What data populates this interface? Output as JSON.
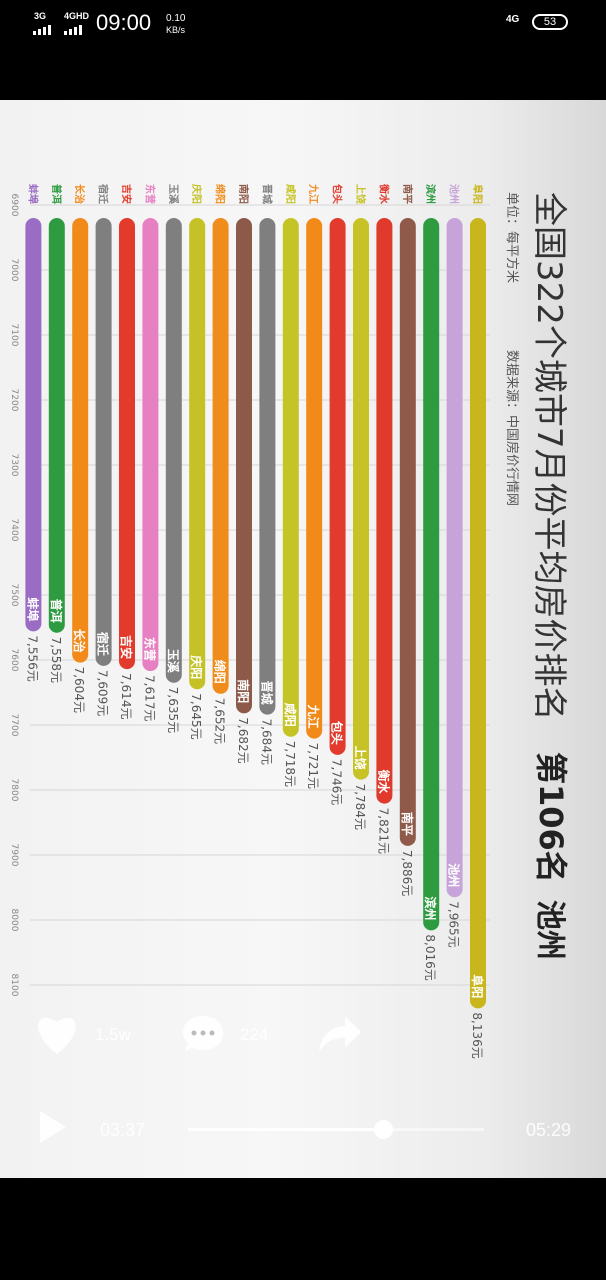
{
  "status_bar": {
    "net1": "3G",
    "net2": "4GHD",
    "time": "09:00",
    "speed_value": "0.10",
    "speed_unit": "KB/s",
    "right_net": "4G",
    "battery": "53"
  },
  "player": {
    "likes": "1.5w",
    "comments": "224",
    "current_time": "03:37",
    "duration": "05:29",
    "progress": 0.66,
    "icons": [
      "heart-icon",
      "comment-icon",
      "share-icon",
      "play-icon"
    ]
  },
  "chart_data": {
    "type": "bar",
    "orientation": "rotated-90deg-clockwise",
    "title": "全国322个城市7月份平均房价排名",
    "unit_label": "单位：",
    "unit_value": "每平方米",
    "source_label": "数据来源：",
    "source_value": "中国房价行情网",
    "rank_text": "第106名",
    "city_text": "池州",
    "axis_ticks": [
      6900,
      7000,
      7100,
      7200,
      7300,
      7400,
      7500,
      7600,
      7700,
      7800,
      7900,
      8000,
      8100
    ],
    "xlim": [
      6900,
      8100
    ],
    "grid": true,
    "categories": [
      "阜阳",
      "池州",
      "滨州",
      "南平",
      "衡水",
      "上饶",
      "包头",
      "九江",
      "咸阳",
      "晋城",
      "南阳",
      "绵阳",
      "庆阳",
      "玉溪",
      "东营",
      "吉安",
      "宿迁",
      "长治",
      "普洱",
      "蚌埠"
    ],
    "values": [
      8136,
      7965,
      8016,
      7886,
      7821,
      7784,
      7746,
      7721,
      7718,
      7684,
      7682,
      7652,
      7645,
      7635,
      7617,
      7614,
      7609,
      7604,
      7558,
      7556
    ],
    "value_labels": [
      "8,136元",
      "7,965元",
      "8,016元",
      "7,886元",
      "7,821元",
      "7,784元",
      "7,746元",
      "7,721元",
      "7,718元",
      "7,684元",
      "7,682元",
      "7,652元",
      "7,645元",
      "7,635元",
      "7,617元",
      "7,614元",
      "7,609元",
      "7,604元",
      "7,558元",
      "7,556元"
    ],
    "colors": [
      "#c9b51c",
      "#c6a4da",
      "#2e9b40",
      "#8f5a4a",
      "#e03a2d",
      "#c7c225",
      "#e23a2c",
      "#f28a1a",
      "#c5c426",
      "#7f7f7f",
      "#8d5a4a",
      "#f08c1b",
      "#c5c227",
      "#7f7f7f",
      "#e780c2",
      "#e23b2c",
      "#7f7f7f",
      "#f28a1a",
      "#2e9b40",
      "#9b6cc4"
    ]
  }
}
